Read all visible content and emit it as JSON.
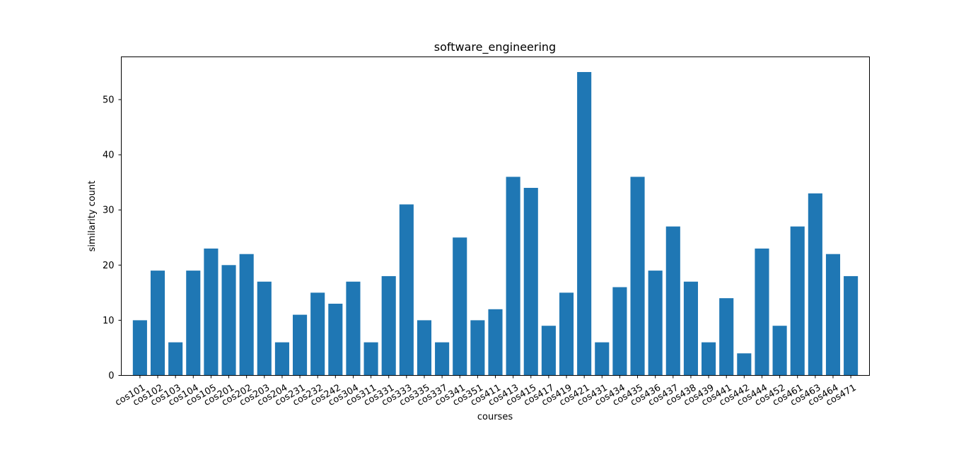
{
  "chart_data": {
    "type": "bar",
    "title": "software_engineering",
    "xlabel": "courses",
    "ylabel": "similarity count",
    "ylim": [
      0,
      57.75
    ],
    "yticks": [
      0,
      10,
      20,
      30,
      40,
      50
    ],
    "grid": false,
    "color": "#1f77b4",
    "categories": [
      "cos101",
      "cos102",
      "cos103",
      "cos104",
      "cos105",
      "cos201",
      "cos202",
      "cos203",
      "cos204",
      "cos231",
      "cos232",
      "cos242",
      "cos304",
      "cos311",
      "cos331",
      "cos333",
      "cos335",
      "cos337",
      "cos341",
      "cos351",
      "cos411",
      "cos413",
      "cos415",
      "cos417",
      "cos419",
      "cos421",
      "cos431",
      "cos434",
      "cos435",
      "cos436",
      "cos437",
      "cos438",
      "cos439",
      "cos441",
      "cos442",
      "cos444",
      "cos452",
      "cos461",
      "cos463",
      "cos464",
      "cos471"
    ],
    "values": [
      10,
      19,
      6,
      19,
      23,
      20,
      22,
      17,
      6,
      11,
      15,
      13,
      17,
      6,
      18,
      31,
      10,
      6,
      25,
      10,
      12,
      36,
      34,
      9,
      15,
      55,
      6,
      16,
      36,
      19,
      27,
      17,
      6,
      14,
      4,
      23,
      9,
      27,
      33,
      22,
      18
    ]
  }
}
